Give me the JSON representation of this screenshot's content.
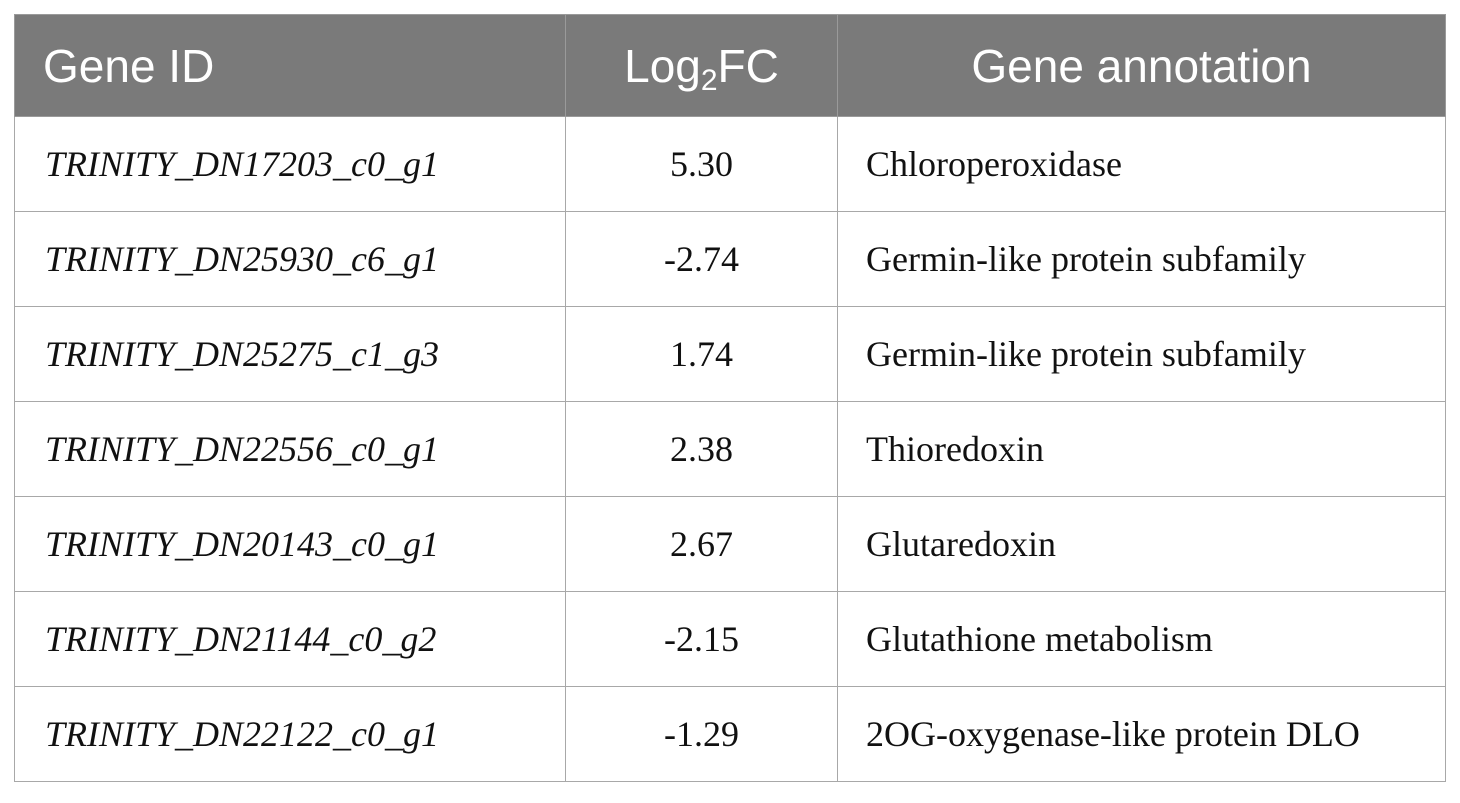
{
  "table": {
    "headers": {
      "gene_id": "Gene ID",
      "log2fc_base": "Log",
      "log2fc_sub": "2",
      "log2fc_suffix": "FC",
      "annotation": "Gene annotation"
    },
    "rows": [
      {
        "gene_id": "TRINITY_DN17203_c0_g1",
        "log2fc": "5.30",
        "annotation": "Chloroperoxidase"
      },
      {
        "gene_id": "TRINITY_DN25930_c6_g1",
        "log2fc": "-2.74",
        "annotation": "Germin-like protein subfamily"
      },
      {
        "gene_id": "TRINITY_DN25275_c1_g3",
        "log2fc": "1.74",
        "annotation": "Germin-like protein subfamily"
      },
      {
        "gene_id": "TRINITY_DN22556_c0_g1",
        "log2fc": "2.38",
        "annotation": "Thioredoxin"
      },
      {
        "gene_id": "TRINITY_DN20143_c0_g1",
        "log2fc": "2.67",
        "annotation": "Glutaredoxin"
      },
      {
        "gene_id": "TRINITY_DN21144_c0_g2",
        "log2fc": "-2.15",
        "annotation": "Glutathione metabolism"
      },
      {
        "gene_id": "TRINITY_DN22122_c0_g1",
        "log2fc": "-1.29",
        "annotation": "2OG-oxygenase-like protein DLO"
      }
    ]
  },
  "colors": {
    "header_background": "#7a7a7a",
    "header_text": "#ffffff",
    "border": "#a8a8a8"
  }
}
